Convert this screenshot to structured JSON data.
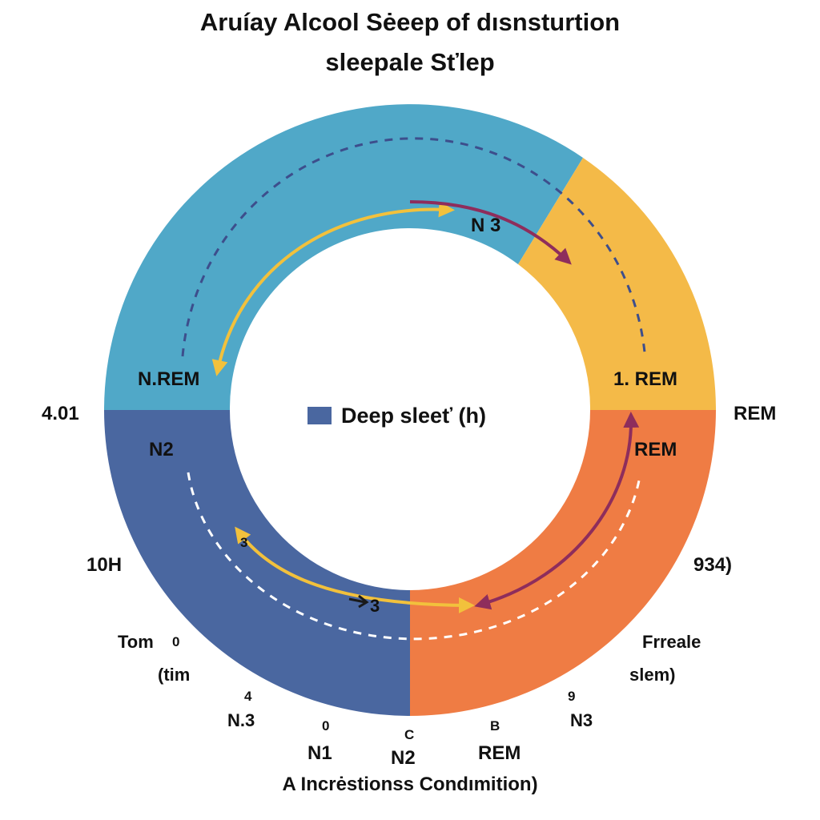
{
  "title": {
    "line1": "Aruíay Alcool Sėeep of dısnsturtion",
    "line2": "sleepale Sťlep"
  },
  "colors": {
    "teal": "#50A8C8",
    "yellow": "#F4BA48",
    "navy": "#4A67A0",
    "orange": "#EF7C44",
    "yellow_arrow": "#F2C13C",
    "purple_arrow": "#8E2D5C",
    "dashed_outer": "#3D4E8C",
    "dashed_inner": "#ffffff",
    "legend_swatch": "#4A67A0"
  },
  "ring": {
    "segments": [
      {
        "name": "teal",
        "color": "#50A8C8"
      },
      {
        "name": "yellow",
        "color": "#F4BA48"
      },
      {
        "name": "navy",
        "color": "#4A67A0"
      },
      {
        "name": "orange",
        "color": "#EF7C44"
      }
    ],
    "labels": {
      "n3_top": "N 3",
      "nrem_left": "N.REM",
      "rem_right": "1. REM",
      "n2_left": "N2",
      "rem_inner": "REM",
      "small_3_left": "3",
      "small_3_bottom": "3"
    }
  },
  "legend": {
    "label": "Deep sleeť (h)",
    "color": "#4A67A0"
  },
  "outer_labels": {
    "left_value": "4.01",
    "right_rem": "REM",
    "left_10h": "10H",
    "right_934": "934)",
    "tom": "Tom",
    "tom_zero": "0",
    "tim": "(tim",
    "freale": "Frreale",
    "slem": "slem)",
    "four": "4",
    "nine": "9",
    "n3_left": "N.3",
    "zero_bottom": "0",
    "c": "C",
    "b": "B",
    "n3_right": "N3",
    "n1": "N1",
    "n2": "N2",
    "rem_bottom": "REM"
  },
  "footer": "A Incrėstionss Condımition)"
}
